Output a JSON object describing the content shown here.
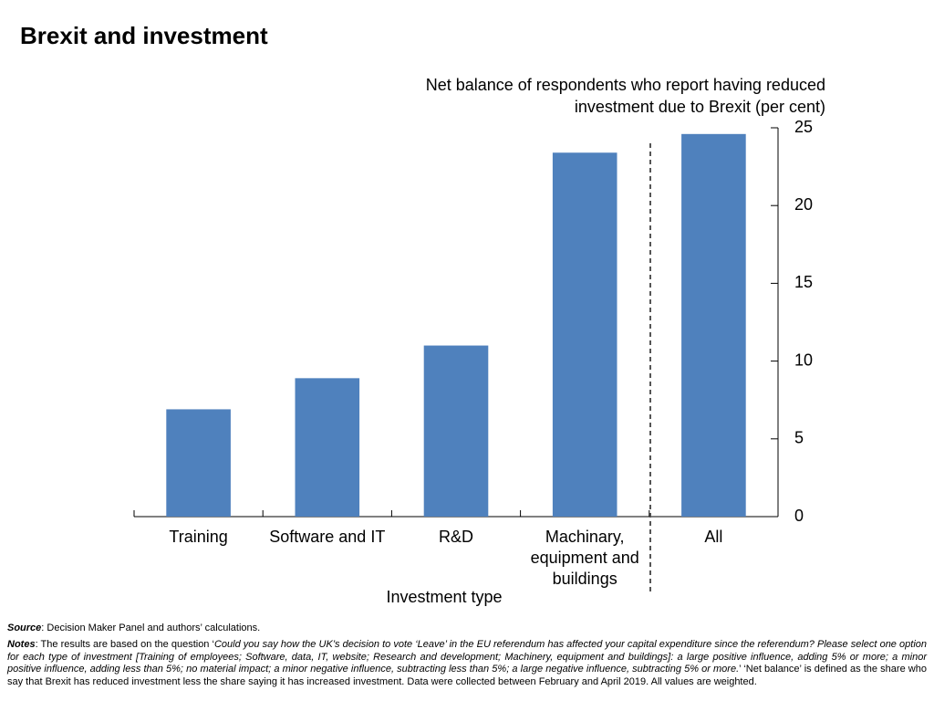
{
  "chart_data": {
    "type": "bar",
    "title": "Brexit and investment",
    "y_axis_label": "Net balance of respondents who report having reduced investment due to Brexit (per cent)",
    "x_axis_label": "Investment type",
    "categories": [
      "Training",
      "Software and IT",
      "R&D",
      "Machinary, equipment and buildings",
      "All"
    ],
    "values": [
      6.9,
      8.9,
      11.0,
      23.4,
      24.6
    ],
    "color": "#4f81bd",
    "ylim": [
      0,
      25
    ],
    "yticks": [
      0,
      5,
      10,
      15,
      20,
      25
    ],
    "grid": false
  },
  "source": {
    "label": "Source",
    "text": ": Decision Maker Panel and authors’ calculations."
  },
  "notes": {
    "label": "Notes",
    "prefix": ": The results are based on the question ‘",
    "question": "Could you say how the UK’s decision to vote ‘Leave’ in the EU referendum has affected your capital expenditure since the referendum? Please select one option for each type of investment [Training of employees; Software, data, IT, website; Research and development; Machinery, equipment and buildings]: a large positive influence, adding 5% or more; a minor positive influence, adding less than 5%; no material impact; a minor negative influence, subtracting less than 5%; a large negative influence, subtracting 5% or more.",
    "suffix": "’ ‘Net balance’ is defined as the share who say that Brexit has reduced investment less the share saying it has increased investment. Data were collected between February and April 2019.  All values are weighted."
  }
}
